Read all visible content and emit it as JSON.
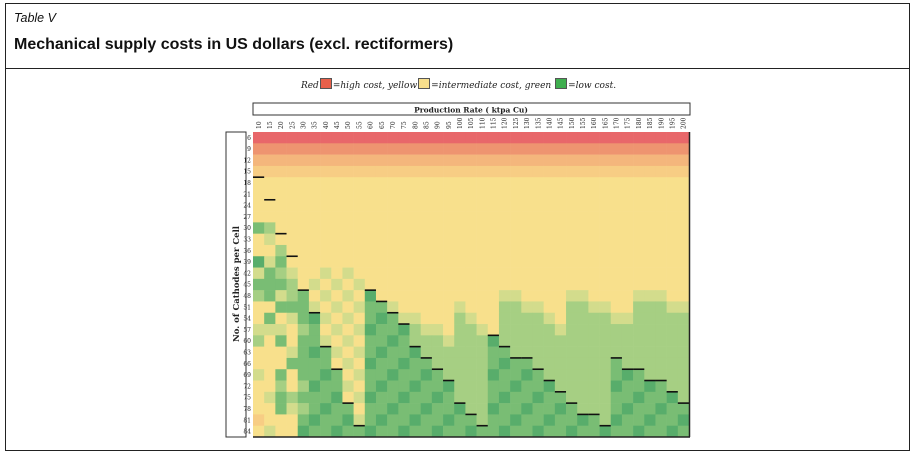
{
  "header": {
    "table_label": "Table V",
    "title": "Mechanical supply costs in US dollars (excl. rectiformers)"
  },
  "legend": {
    "red_label": "Red",
    "red_text": "=high cost, yellow",
    "yellow_text": "=intermediate cost, green",
    "green_text": "=low cost.",
    "colors": {
      "red": "#e8604a",
      "yellow": "#f8df8c",
      "green": "#3fae4f"
    }
  },
  "chart_data": {
    "type": "heatmap",
    "xlabel": "Production Rate ( ktpa Cu)",
    "ylabel": "No. of Cathodes per Cell",
    "x_ticks": [
      "10",
      "15",
      "20",
      "25",
      "30",
      "35",
      "40",
      "45",
      "50",
      "55",
      "60",
      "65",
      "70",
      "75",
      "80",
      "85",
      "90",
      "95",
      "100",
      "105",
      "110",
      "115",
      "120",
      "125",
      "130",
      "135",
      "140",
      "145",
      "150",
      "155",
      "160",
      "165",
      "170",
      "175",
      "180",
      "185",
      "190",
      "195",
      "200"
    ],
    "y_ticks": [
      "6",
      "9",
      "12",
      "15",
      "18",
      "21",
      "24",
      "27",
      "30",
      "33",
      "36",
      "39",
      "42",
      "45",
      "48",
      "51",
      "54",
      "57",
      "60",
      "63",
      "66",
      "69",
      "72",
      "75",
      "78",
      "81",
      "84"
    ],
    "level_scale": "0 = low cost (green) ... 4 = intermediate (yellow) ... 8 = high cost (red)",
    "level_colors": [
      "#58ad6b",
      "#79bd74",
      "#a6cf83",
      "#d3dc8c",
      "#f8e08c",
      "#f7cd84",
      "#f4b67c",
      "#ee9470",
      "#e8676a"
    ],
    "cost_levels": [
      "888888888888888888888888888888888888888",
      "777777777777777777777777777777777777777",
      "666666666666666666666666666666666666666",
      "555555555555555555555555555555555555555",
      "444444444444444444444444444444444444444",
      "444444444444444444444444444444444444444",
      "444444444444444444444444444444444444444",
      "444444444444444444444444444444444444444",
      "124444444444444444444444444444444444444",
      "434444444444444444444444444444444444444",
      "442444444444444444444444444444444444444",
      "031444444444444444444444444444444444444",
      "312344343444444444444444444444444444444",
      "111243434344444444444444444444444444444",
      "213214343404444444444433444433444433344",
      "441113434311344444344422334422334422233",
      "414310343410133444234422223422223322222",
      "333421434301102334223422222322222222222",
      "241411343411012223222022222222222222222",
      "444310134310110222222112222222222222222",
      "444111143401101122222101122222221222222",
      "341411014311011012222011012222221012222",
      "442420113410110110222110110222220110122",
      "431211104301101101222101101122221101102",
      "441321011411011011022011011012221011011",
      "544410110310110110112110110110120110110",
      "434401101101101101101101101101101101101"
    ],
    "optimum_marker_below_row": [
      15,
      21,
      30,
      36,
      45,
      51,
      60,
      66,
      75,
      81,
      45,
      48,
      51,
      54,
      60,
      63,
      66,
      69,
      75,
      78,
      81,
      57,
      60,
      63,
      63,
      66,
      69,
      72,
      75,
      78,
      78,
      81,
      63,
      66,
      66,
      69,
      69,
      72,
      75
    ]
  }
}
